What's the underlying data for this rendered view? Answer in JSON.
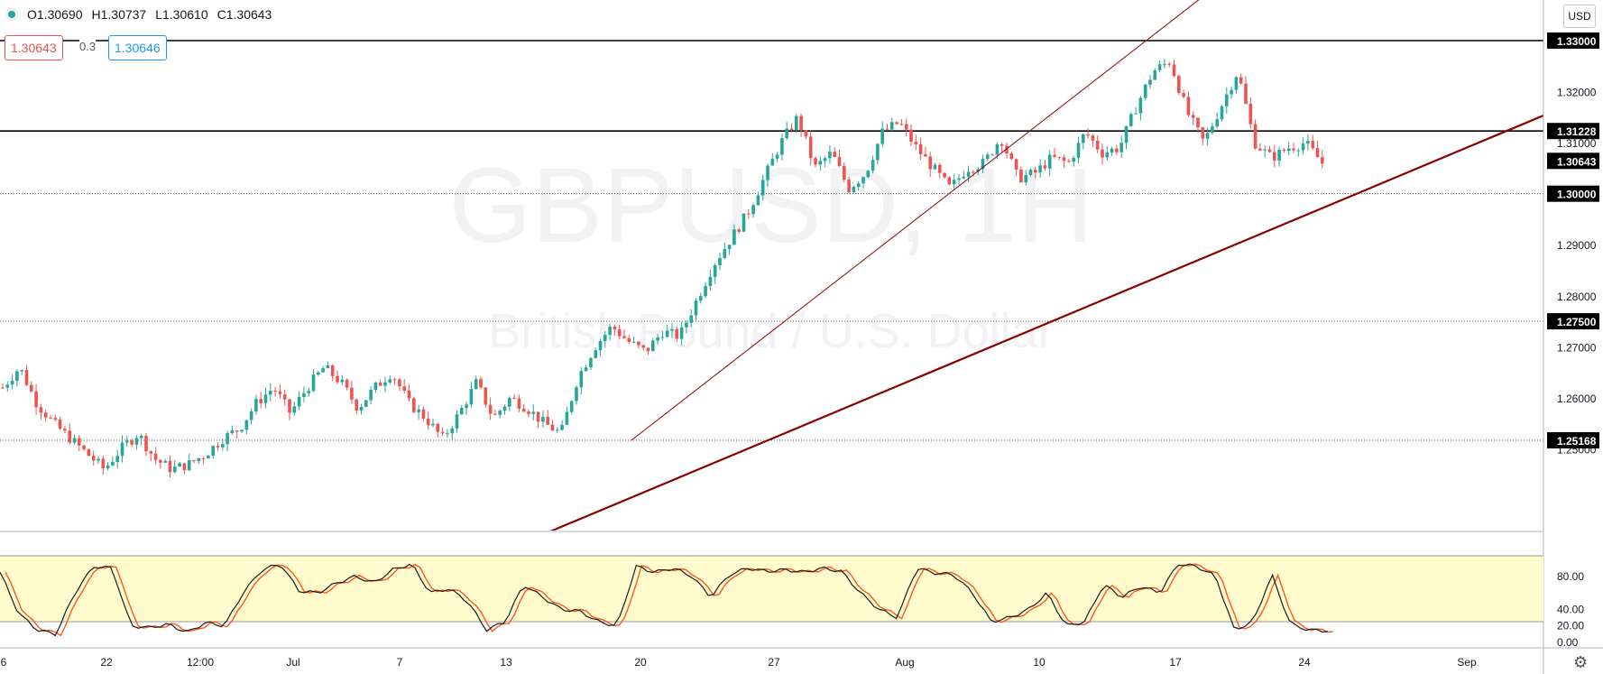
{
  "ohlc": {
    "open": "O1.30690",
    "high": "H1.30737",
    "low": "L1.30610",
    "close": "C1.30643"
  },
  "quote": {
    "sell": "1.30643",
    "spread": "0.3",
    "buy": "1.30646"
  },
  "currency_button": "USD",
  "watermark": {
    "symbol": "GBPUSD, 1H",
    "name": "British Pound / U.S. Dollar"
  },
  "icons": {
    "settings": "gear-icon",
    "status": "status-dot-icon"
  },
  "colors": {
    "up": "#26a69a",
    "down": "#ef5350",
    "trendline": "#8b0000",
    "stoch_k": "#1a1a1a",
    "stoch_d": "#ff5722",
    "stoch_band": "#fffbcc"
  },
  "chart_data": {
    "type": "candlestick",
    "price_axis": {
      "ticks": [
        "1.33000",
        "1.32000",
        "1.31000",
        "1.29000",
        "1.28000",
        "1.27000",
        "1.26000",
        "1.25000"
      ],
      "range": [
        1.2475,
        1.3375
      ]
    },
    "level_labels": [
      "1.33000",
      "1.31228",
      "1.30643",
      "1.30000",
      "1.27500",
      "1.25168"
    ],
    "horizontal_lines": [
      {
        "value": 1.33,
        "style": "solid"
      },
      {
        "value": 1.31228,
        "style": "solid"
      },
      {
        "value": 1.3,
        "style": "dotted"
      },
      {
        "value": 1.275,
        "style": "dotted"
      },
      {
        "value": 1.25168,
        "style": "dotted"
      }
    ],
    "current_price": "1.30643",
    "time_axis": [
      "6",
      "22",
      "12:00",
      "Jul",
      "7",
      "13",
      "20",
      "27",
      "Aug",
      "10",
      "17",
      "24",
      "Sep"
    ],
    "close_path": [
      1.262,
      1.266,
      1.259,
      1.255,
      1.252,
      1.249,
      1.246,
      1.25,
      1.253,
      1.248,
      1.246,
      1.247,
      1.249,
      1.252,
      1.254,
      1.259,
      1.262,
      1.257,
      1.262,
      1.266,
      1.263,
      1.258,
      1.262,
      1.265,
      1.259,
      1.256,
      1.252,
      1.257,
      1.263,
      1.256,
      1.26,
      1.258,
      1.255,
      1.253,
      1.264,
      1.27,
      1.274,
      1.271,
      1.269,
      1.273,
      1.272,
      1.279,
      1.286,
      1.291,
      1.296,
      1.303,
      1.31,
      1.315,
      1.305,
      1.308,
      1.301,
      1.304,
      1.312,
      1.314,
      1.309,
      1.305,
      1.301,
      1.305,
      1.306,
      1.311,
      1.303,
      1.304,
      1.307,
      1.306,
      1.312,
      1.308,
      1.309,
      1.317,
      1.324,
      1.326,
      1.316,
      1.31,
      1.317,
      1.324,
      1.31,
      1.307,
      1.309,
      1.31,
      1.306
    ],
    "trendlines": [
      {
        "name": "steep support",
        "style": "thin"
      },
      {
        "name": "main support",
        "style": "thick"
      }
    ],
    "stochastic": {
      "ticks": [
        "80.00",
        "40.00",
        "20.00",
        "0.00"
      ],
      "overbought": 80,
      "oversold": 20,
      "k": [
        85,
        35,
        15,
        10,
        60,
        92,
        90,
        20,
        18,
        22,
        12,
        24,
        20,
        60,
        88,
        95,
        62,
        60,
        72,
        80,
        72,
        88,
        95,
        60,
        65,
        50,
        15,
        25,
        70,
        55,
        40,
        38,
        25,
        20,
        92,
        85,
        90,
        80,
        55,
        82,
        90,
        86,
        88,
        85,
        90,
        86,
        60,
        40,
        30,
        90,
        84,
        82,
        60,
        25,
        30,
        40,
        60,
        20,
        25,
        70,
        55,
        68,
        60,
        95,
        92,
        80,
        15,
        25,
        82,
        22,
        15,
        14
      ]
    }
  }
}
